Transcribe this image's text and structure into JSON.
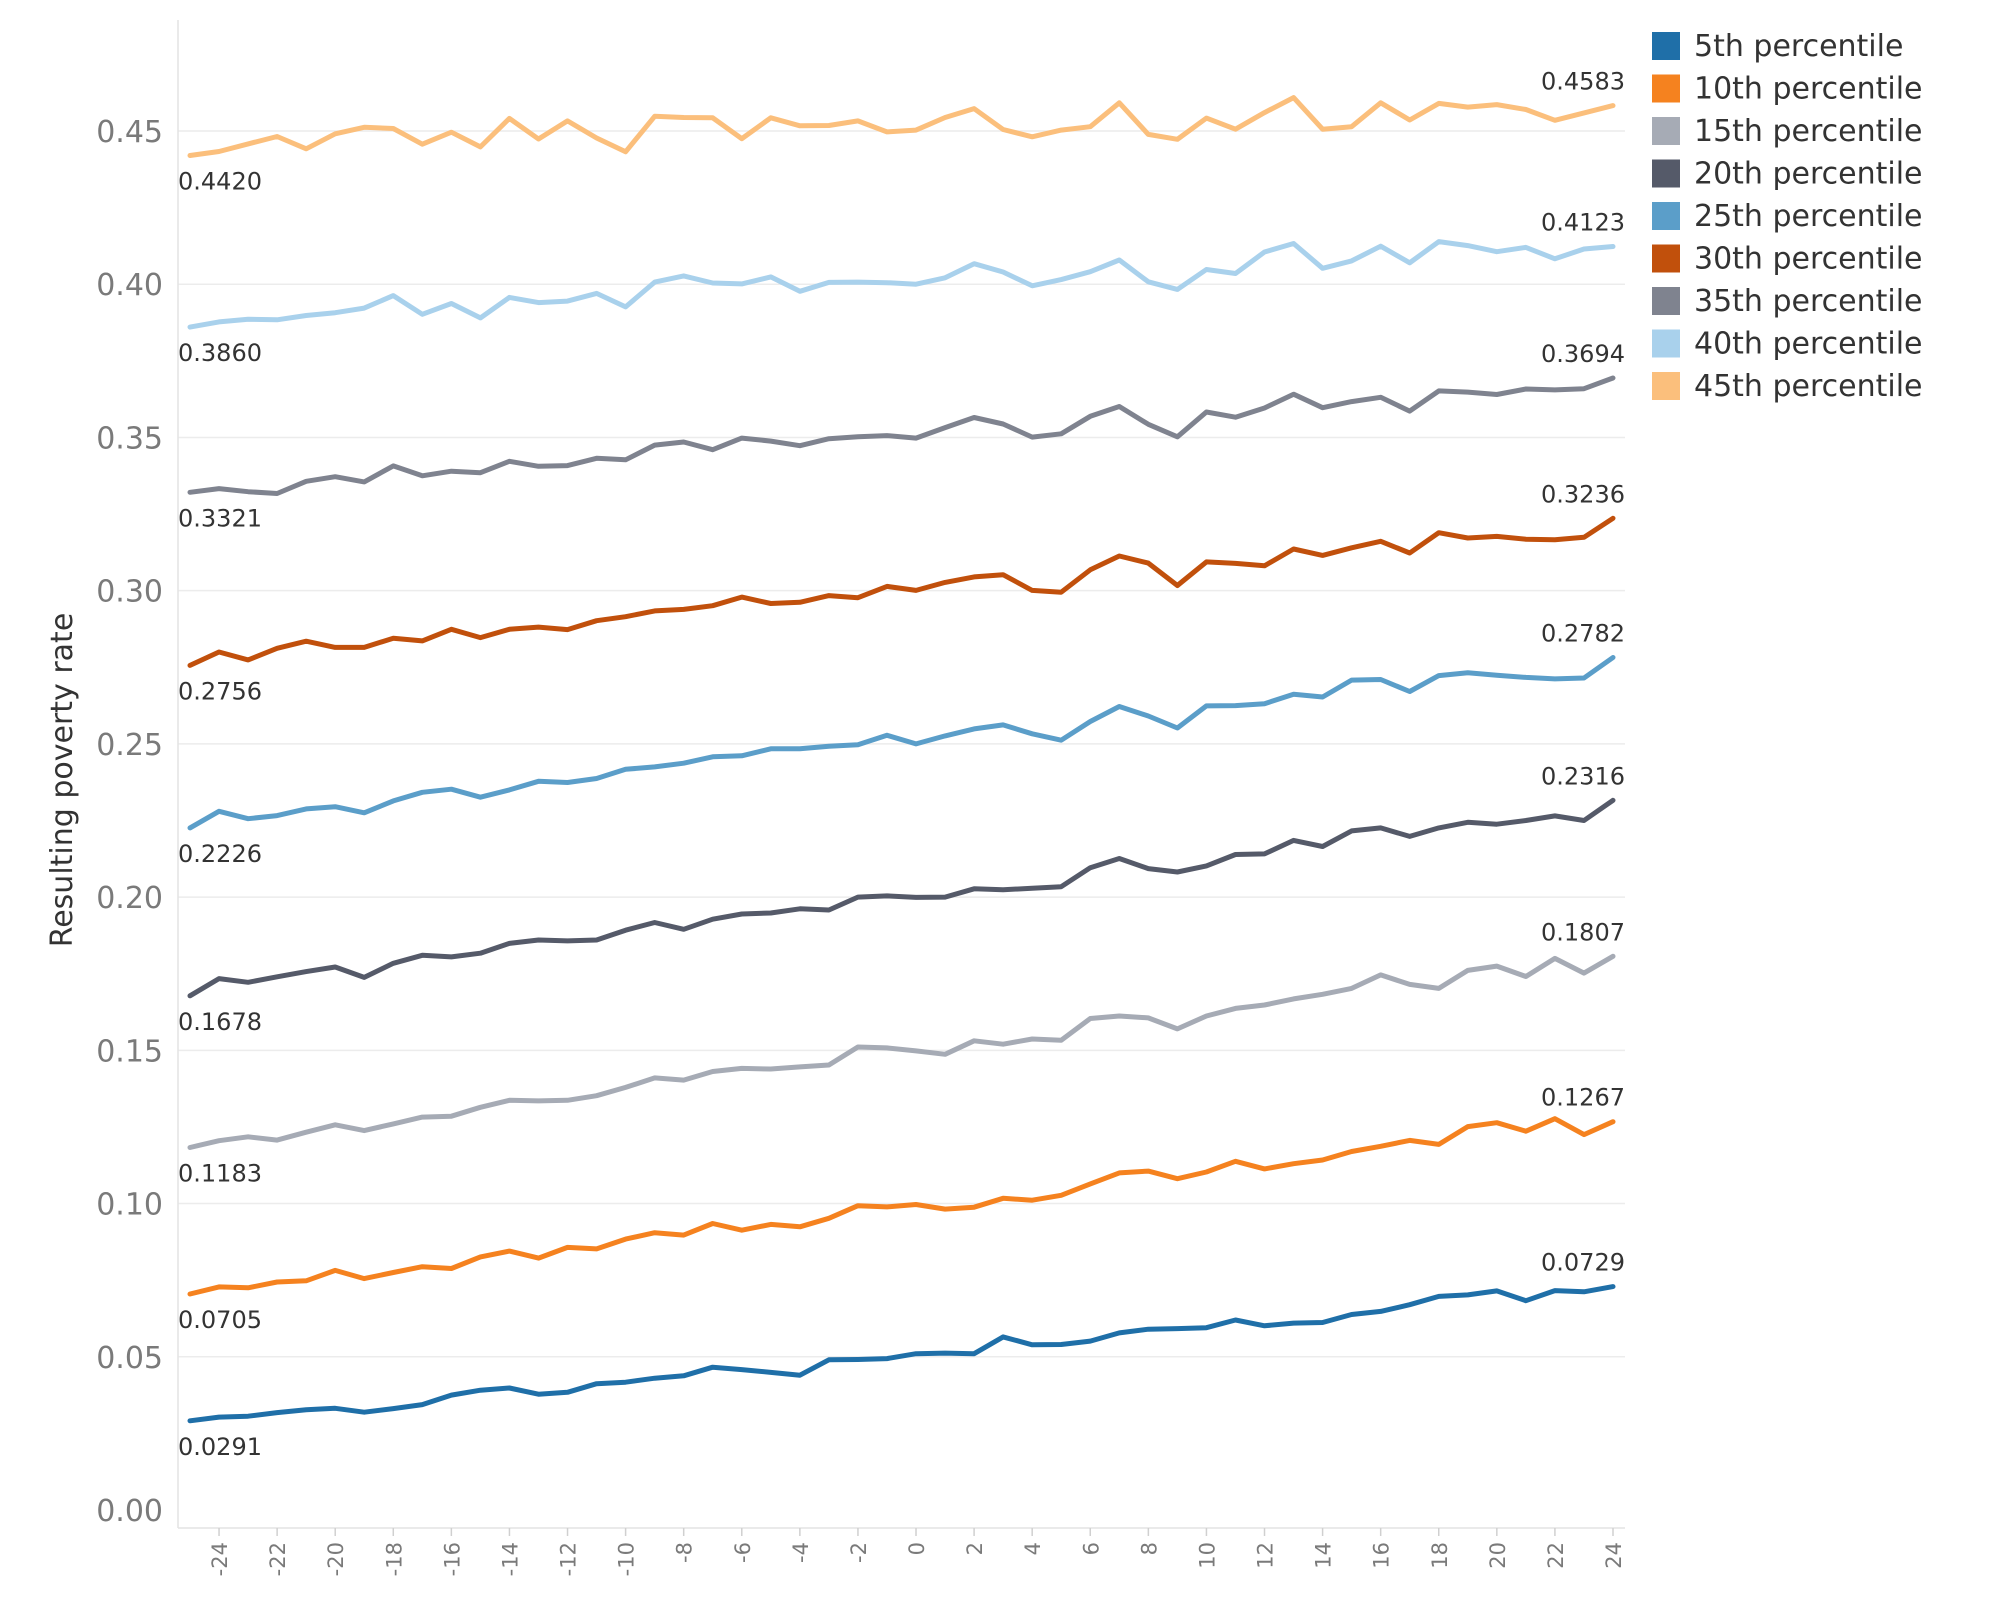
{
  "chart_data": {
    "type": "line",
    "title": "",
    "xlabel": "",
    "ylabel": "Resulting poverty rate",
    "ylim": [
      0,
      0.48
    ],
    "yticks": [
      "0.00",
      "0.05",
      "0.10",
      "0.15",
      "0.20",
      "0.25",
      "0.30",
      "0.35",
      "0.40",
      "0.45"
    ],
    "xticks": [
      -24,
      -22,
      -20,
      -18,
      -16,
      -14,
      -12,
      -10,
      -8,
      -6,
      -4,
      -2,
      0,
      2,
      4,
      6,
      8,
      10,
      12,
      14,
      16,
      18,
      20,
      22,
      24
    ],
    "xlim": [
      -25,
      24
    ],
    "grid": "horizontal",
    "legend_position": "right",
    "x": [
      -25,
      -24,
      -23,
      -22,
      -21,
      -20,
      -19,
      -18,
      -17,
      -16,
      -15,
      -14,
      -13,
      -12,
      -11,
      -10,
      -9,
      -8,
      -7,
      -6,
      -5,
      -4,
      -3,
      -2,
      -1,
      0,
      1,
      2,
      3,
      4,
      5,
      6,
      7,
      8,
      9,
      10,
      11,
      12,
      13,
      14,
      15,
      16,
      17,
      18,
      19,
      20,
      21,
      22,
      23,
      24
    ],
    "series": [
      {
        "name": "5th percentile",
        "color": "#1f6fa8",
        "start_label": "0.0291",
        "end_label": "0.0729",
        "values": [
          0.0291,
          0.0303,
          0.0306,
          0.0318,
          0.0327,
          0.0332,
          0.0319,
          0.0331,
          0.0344,
          0.0375,
          0.0391,
          0.0398,
          0.0378,
          0.0384,
          0.0412,
          0.0417,
          0.043,
          0.0438,
          0.0466,
          0.0458,
          0.0449,
          0.044,
          0.049,
          0.0491,
          0.0494,
          0.051,
          0.0512,
          0.051,
          0.0565,
          0.0539,
          0.054,
          0.0551,
          0.0578,
          0.059,
          0.0592,
          0.0595,
          0.062,
          0.0601,
          0.061,
          0.0612,
          0.0638,
          0.0648,
          0.067,
          0.0697,
          0.0702,
          0.0715,
          0.0683,
          0.0716,
          0.0712,
          0.0729
        ]
      },
      {
        "name": "10th percentile",
        "color": "#f5821f",
        "start_label": "0.0705",
        "end_label": "0.1267",
        "values": [
          0.0705,
          0.0728,
          0.0725,
          0.0744,
          0.0748,
          0.0782,
          0.0755,
          0.0775,
          0.0794,
          0.0788,
          0.0826,
          0.0845,
          0.0822,
          0.0857,
          0.0852,
          0.0884,
          0.0905,
          0.0897,
          0.0935,
          0.0913,
          0.0932,
          0.0924,
          0.0952,
          0.0993,
          0.0989,
          0.0997,
          0.0982,
          0.0988,
          0.1017,
          0.1011,
          0.1027,
          0.1064,
          0.11,
          0.1106,
          0.1081,
          0.1103,
          0.1138,
          0.1113,
          0.113,
          0.1142,
          0.117,
          0.1187,
          0.1206,
          0.1193,
          0.1251,
          0.1264,
          0.1236,
          0.1277,
          0.1225,
          0.1267
        ]
      },
      {
        "name": "15th percentile",
        "color": "#a6abb5",
        "start_label": "0.1183",
        "end_label": "0.1807",
        "values": [
          0.1183,
          0.1205,
          0.1218,
          0.1207,
          0.1233,
          0.1257,
          0.1238,
          0.126,
          0.1282,
          0.1285,
          0.1314,
          0.1337,
          0.1335,
          0.1337,
          0.1352,
          0.1379,
          0.141,
          0.1403,
          0.1431,
          0.1441,
          0.1439,
          0.1446,
          0.1452,
          0.1511,
          0.1508,
          0.1498,
          0.1487,
          0.1531,
          0.152,
          0.1537,
          0.1533,
          0.1604,
          0.1612,
          0.1606,
          0.157,
          0.1612,
          0.1637,
          0.1648,
          0.1668,
          0.1683,
          0.1702,
          0.1746,
          0.1715,
          0.1702,
          0.1761,
          0.1775,
          0.1741,
          0.18,
          0.1752,
          0.1807
        ]
      },
      {
        "name": "20th percentile",
        "color": "#555a69",
        "start_label": "0.1678",
        "end_label": "0.2316",
        "values": [
          0.1678,
          0.1734,
          0.1722,
          0.174,
          0.1757,
          0.1772,
          0.1738,
          0.1784,
          0.181,
          0.1805,
          0.1817,
          0.1849,
          0.186,
          0.1857,
          0.186,
          0.1892,
          0.1917,
          0.1895,
          0.1928,
          0.1945,
          0.1948,
          0.1962,
          0.1958,
          0.2,
          0.2004,
          0.1999,
          0.2,
          0.2027,
          0.2024,
          0.2029,
          0.2034,
          0.2096,
          0.2126,
          0.2093,
          0.2082,
          0.2102,
          0.2139,
          0.2141,
          0.2185,
          0.2165,
          0.2216,
          0.2226,
          0.2198,
          0.2226,
          0.2244,
          0.2238,
          0.225,
          0.2265,
          0.225,
          0.2316
        ]
      },
      {
        "name": "25th percentile",
        "color": "#5b9ec9",
        "start_label": "0.2226",
        "end_label": "0.2782",
        "values": [
          0.2226,
          0.228,
          0.2256,
          0.2266,
          0.2288,
          0.2295,
          0.2275,
          0.2314,
          0.2342,
          0.2352,
          0.2326,
          0.235,
          0.2378,
          0.2374,
          0.2387,
          0.2417,
          0.2425,
          0.2437,
          0.2458,
          0.2461,
          0.2484,
          0.2484,
          0.2492,
          0.2497,
          0.2528,
          0.25,
          0.2526,
          0.2549,
          0.2562,
          0.2533,
          0.2512,
          0.2573,
          0.2622,
          0.2591,
          0.2552,
          0.2624,
          0.2625,
          0.2631,
          0.2662,
          0.2653,
          0.2708,
          0.271,
          0.2671,
          0.2723,
          0.2732,
          0.2724,
          0.2717,
          0.2712,
          0.2715,
          0.2782
        ]
      },
      {
        "name": "30th percentile",
        "color": "#c1500c",
        "start_label": "0.2756",
        "end_label": "0.3236",
        "values": [
          0.2756,
          0.28,
          0.2774,
          0.2812,
          0.2835,
          0.2815,
          0.2815,
          0.2845,
          0.2836,
          0.2874,
          0.2847,
          0.2874,
          0.2881,
          0.2873,
          0.2902,
          0.2915,
          0.2934,
          0.2939,
          0.2951,
          0.2979,
          0.2958,
          0.2962,
          0.2984,
          0.2977,
          0.3014,
          0.3001,
          0.3027,
          0.3045,
          0.3052,
          0.3001,
          0.2995,
          0.3068,
          0.3113,
          0.309,
          0.3017,
          0.3094,
          0.3089,
          0.3081,
          0.3136,
          0.3115,
          0.314,
          0.3161,
          0.3123,
          0.3189,
          0.3172,
          0.3177,
          0.3168,
          0.3166,
          0.3174,
          0.3236
        ]
      },
      {
        "name": "35th percentile",
        "color": "#7f838f",
        "start_label": "0.3321",
        "end_label": "0.3694",
        "values": [
          0.3321,
          0.3333,
          0.3323,
          0.3317,
          0.3357,
          0.3372,
          0.3355,
          0.3407,
          0.3375,
          0.339,
          0.3385,
          0.3422,
          0.3406,
          0.3408,
          0.3432,
          0.3427,
          0.3475,
          0.3485,
          0.346,
          0.3498,
          0.3488,
          0.3473,
          0.3496,
          0.3502,
          0.3506,
          0.3498,
          0.3532,
          0.3565,
          0.3544,
          0.3501,
          0.3512,
          0.3569,
          0.3601,
          0.3543,
          0.3502,
          0.3583,
          0.3566,
          0.3596,
          0.3641,
          0.3597,
          0.3617,
          0.3631,
          0.3586,
          0.3652,
          0.3648,
          0.364,
          0.3658,
          0.3655,
          0.3659,
          0.3694
        ]
      },
      {
        "name": "40th percentile",
        "color": "#a9d1ec",
        "start_label": "0.3860",
        "end_label": "0.4123",
        "values": [
          0.386,
          0.3877,
          0.3886,
          0.3884,
          0.3898,
          0.3907,
          0.3922,
          0.3963,
          0.3902,
          0.3937,
          0.389,
          0.3957,
          0.394,
          0.3945,
          0.397,
          0.3926,
          0.4007,
          0.4027,
          0.4004,
          0.4001,
          0.4024,
          0.3977,
          0.4006,
          0.4007,
          0.4005,
          0.4,
          0.4021,
          0.4067,
          0.404,
          0.3995,
          0.4015,
          0.4041,
          0.4079,
          0.4008,
          0.3983,
          0.4048,
          0.4035,
          0.4105,
          0.4133,
          0.4052,
          0.4076,
          0.4124,
          0.407,
          0.4139,
          0.4126,
          0.4106,
          0.412,
          0.4083,
          0.4115,
          0.4123
        ]
      },
      {
        "name": "45th percentile",
        "color": "#fbbf7c",
        "start_label": "0.4420",
        "end_label": "0.4583",
        "values": [
          0.442,
          0.4433,
          0.4458,
          0.4482,
          0.4442,
          0.4491,
          0.4512,
          0.4508,
          0.4457,
          0.4496,
          0.4448,
          0.4541,
          0.4474,
          0.4533,
          0.4477,
          0.4432,
          0.4548,
          0.4544,
          0.4543,
          0.4475,
          0.4543,
          0.4517,
          0.4518,
          0.4533,
          0.4497,
          0.4503,
          0.4544,
          0.4573,
          0.4505,
          0.4481,
          0.4503,
          0.4514,
          0.4592,
          0.4489,
          0.4473,
          0.4542,
          0.4506,
          0.456,
          0.4609,
          0.4506,
          0.4514,
          0.4592,
          0.4536,
          0.459,
          0.4578,
          0.4586,
          0.457,
          0.4535,
          0.4559,
          0.4583
        ]
      }
    ]
  }
}
